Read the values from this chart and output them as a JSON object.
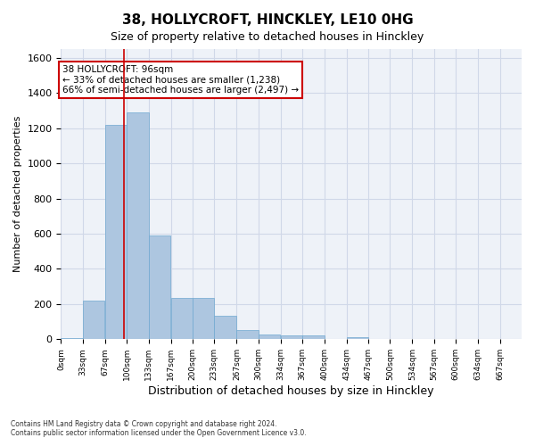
{
  "title_line1": "38, HOLLYCROFT, HINCKLEY, LE10 0HG",
  "title_line2": "Size of property relative to detached houses in Hinckley",
  "xlabel": "Distribution of detached houses by size in Hinckley",
  "ylabel": "Number of detached properties",
  "footnote": "Contains HM Land Registry data © Crown copyright and database right 2024.\nContains public sector information licensed under the Open Government Licence v3.0.",
  "bins": [
    0,
    33,
    67,
    100,
    133,
    167,
    200,
    233,
    267,
    300,
    334,
    367,
    400,
    434,
    467,
    500,
    534,
    567,
    600,
    634,
    667
  ],
  "bar_values": [
    5,
    220,
    1220,
    1290,
    590,
    235,
    235,
    135,
    50,
    25,
    20,
    20,
    0,
    10,
    0,
    0,
    0,
    0,
    0,
    0
  ],
  "bar_color": "#adc6e0",
  "bar_edge_color": "#6fa8d0",
  "grid_color": "#d0d8e8",
  "bg_color": "#eef2f8",
  "property_size": 96,
  "red_line_color": "#cc0000",
  "annotation_text": "38 HOLLYCROFT: 96sqm\n← 33% of detached houses are smaller (1,238)\n66% of semi-detached houses are larger (2,497) →",
  "annotation_box_color": "white",
  "annotation_box_edge": "#cc0000",
  "ylim": [
    0,
    1650
  ],
  "yticks": [
    0,
    200,
    400,
    600,
    800,
    1000,
    1200,
    1400,
    1600
  ],
  "tick_labels": [
    "0sqm",
    "33sqm",
    "67sqm",
    "100sqm",
    "133sqm",
    "167sqm",
    "200sqm",
    "233sqm",
    "267sqm",
    "300sqm",
    "334sqm",
    "367sqm",
    "400sqm",
    "434sqm",
    "467sqm",
    "500sqm",
    "534sqm",
    "567sqm",
    "600sqm",
    "634sqm",
    "667sqm"
  ]
}
